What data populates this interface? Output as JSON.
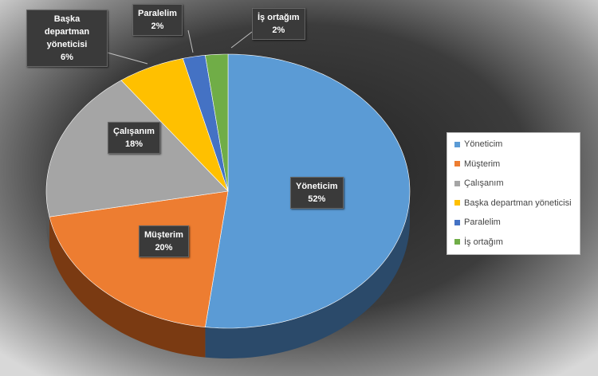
{
  "chart_data": {
    "type": "pie",
    "title": "",
    "slices": [
      {
        "label": "Yöneticim",
        "value": 52,
        "display": "52%",
        "color": "#5b9bd5",
        "side": "#2b4a6a"
      },
      {
        "label": "Müşterim",
        "value": 20,
        "display": "20%",
        "color": "#ed7d31",
        "side": "#7a3a12"
      },
      {
        "label": "Çalışanım",
        "value": 18,
        "display": "18%",
        "color": "#a5a5a5",
        "side": "#555555"
      },
      {
        "label": "Başka departman yöneticisi",
        "value": 6,
        "display": "6%",
        "color": "#ffc000",
        "side": "#8a6800"
      },
      {
        "label": "Paralelim",
        "value": 2,
        "display": "2%",
        "color": "#4472c4",
        "side": "#223a6a"
      },
      {
        "label": "İş ortağım",
        "value": 2,
        "display": "2%",
        "color": "#70ad47",
        "side": "#3a5e22"
      }
    ],
    "legend_position": "right",
    "view": "3d"
  }
}
